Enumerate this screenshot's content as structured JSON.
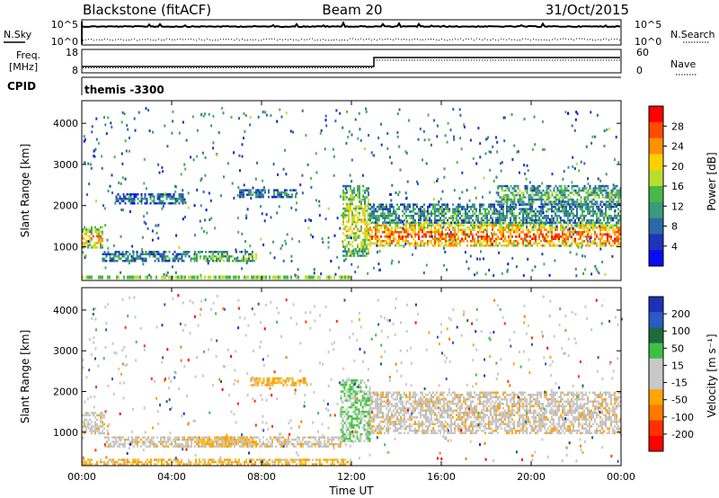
{
  "header": {
    "station": "Blackstone (fitACF)",
    "beam": "Beam 20",
    "date": "31/Oct/2015"
  },
  "aux": {
    "nsky_label": "N.Sky",
    "nsearch_label": "N.Search",
    "left_ticks": [
      "10^5",
      "10^0"
    ],
    "right_ticks": [
      "10^5",
      "10^0"
    ],
    "freq_label_1": "Freq.",
    "freq_label_2": "[MHz]",
    "freq_ticks": [
      "18",
      "8"
    ],
    "nave_label": "Nave",
    "nave_ticks": [
      "60",
      "0"
    ],
    "cpid_label": "CPID",
    "cpid_value": "themis -3300"
  },
  "chart_data": [
    {
      "type": "heatmap",
      "name": "power",
      "ylabel": "Slant Range [km]",
      "ylim": [
        180,
        4550
      ],
      "yticks": [
        1000,
        2000,
        3000,
        4000
      ],
      "xticks": [
        "00:00",
        "04:00",
        "08:00",
        "12:00",
        "16:00",
        "20:00",
        "00:00"
      ],
      "xlim_hours": [
        0,
        24
      ],
      "colorbar": {
        "label": "Power [dB]",
        "ticks": [
          "28",
          "24",
          "20",
          "16",
          "12",
          "8",
          "4"
        ],
        "colors": [
          "#ff0000",
          "#ff4a00",
          "#ff9000",
          "#ffd000",
          "#b8df30",
          "#48b848",
          "#3a9a7a",
          "#2a6aa8",
          "#1e34b8",
          "#0a0af5"
        ]
      },
      "bands": [
        {
          "t": [
            0.0,
            0.9
          ],
          "range": [
            1000,
            1500
          ],
          "level": 0.72
        },
        {
          "t": [
            0.9,
            5.0
          ],
          "range": [
            650,
            900
          ],
          "level": 0.35
        },
        {
          "t": [
            5.0,
            7.8
          ],
          "range": [
            650,
            900
          ],
          "level": 0.5
        },
        {
          "t": [
            1.5,
            4.5
          ],
          "range": [
            2050,
            2300
          ],
          "level": 0.3
        },
        {
          "t": [
            7.0,
            9.5
          ],
          "range": [
            2200,
            2400
          ],
          "level": 0.3
        },
        {
          "t": [
            11.6,
            12.8
          ],
          "range": [
            800,
            2500
          ],
          "level": 0.6
        },
        {
          "t": [
            12.8,
            24.0
          ],
          "range": [
            1000,
            1600
          ],
          "level": 0.85
        },
        {
          "t": [
            12.8,
            24.0
          ],
          "range": [
            1600,
            2050
          ],
          "level": 0.4
        },
        {
          "t": [
            18.5,
            24.0
          ],
          "range": [
            2050,
            2500
          ],
          "level": 0.45
        }
      ]
    },
    {
      "type": "heatmap",
      "name": "velocity",
      "ylabel": "Slant Range [km]",
      "xlabel": "Time UT",
      "ylim": [
        180,
        4550
      ],
      "yticks": [
        1000,
        2000,
        3000,
        4000
      ],
      "xticks": [
        "00:00",
        "04:00",
        "08:00",
        "12:00",
        "16:00",
        "20:00",
        "00:00"
      ],
      "xlim_hours": [
        0,
        24
      ],
      "colorbar": {
        "label": "Velocity [m s⁻¹]",
        "ticks": [
          "200",
          "100",
          "50",
          "15",
          "-15",
          "-50",
          "-100",
          "-200"
        ],
        "colors": [
          "#1e30b8",
          "#2a5ac8",
          "#1b6b3c",
          "#3cc043",
          "#c8c8c8",
          "#c8c8c8",
          "#ffa500",
          "#ff7800",
          "#ff3000",
          "#ff0000"
        ]
      },
      "bands": [
        {
          "t": [
            0.0,
            1.0
          ],
          "range": [
            1000,
            1500
          ],
          "kind": "gray"
        },
        {
          "t": [
            1.0,
            11.5
          ],
          "range": [
            650,
            900
          ],
          "kind": "gray"
        },
        {
          "t": [
            5.0,
            7.8
          ],
          "range": [
            650,
            900
          ],
          "kind": "orange"
        },
        {
          "t": [
            7.5,
            10.0
          ],
          "range": [
            2150,
            2350
          ],
          "kind": "orange"
        },
        {
          "t": [
            11.5,
            12.8
          ],
          "range": [
            800,
            2300
          ],
          "kind": "green"
        },
        {
          "t": [
            12.8,
            24.0
          ],
          "range": [
            1000,
            2000
          ],
          "kind": "gray"
        },
        {
          "t": [
            0.0,
            12.0
          ],
          "range": [
            200,
            350
          ],
          "kind": "orange"
        }
      ]
    }
  ]
}
